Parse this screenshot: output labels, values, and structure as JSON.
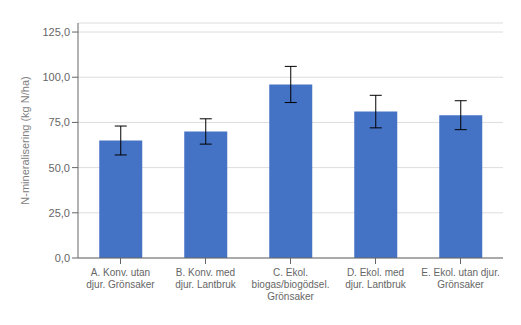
{
  "chart_data": {
    "type": "bar",
    "categories": [
      "A. Konv. utan\ndjur. Grönsaker",
      "B. Konv. med\ndjur. Lantbruk",
      "C. Ekol.\nbiogas/biogödsel.\nGrönsaker",
      "D. Ekol. med\ndjur. Lantbruk",
      "E. Ekol. utan djur.\nGrönsaker"
    ],
    "values": [
      65.0,
      70.0,
      96.0,
      81.0,
      79.0
    ],
    "errors": [
      8.0,
      7.0,
      10.0,
      9.0,
      8.0
    ],
    "color": "#4472C4",
    "ylabel": "N-mineralisering (kg N/ha)",
    "ylim": [
      0,
      130
    ],
    "yticks": [
      {
        "value": 0,
        "label": "0,0"
      },
      {
        "value": 25,
        "label": "25,0"
      },
      {
        "value": 50,
        "label": "50,0"
      },
      {
        "value": 75,
        "label": "75,0"
      },
      {
        "value": 100,
        "label": "100,0"
      },
      {
        "value": 125,
        "label": "125,0"
      }
    ],
    "grid": true
  }
}
